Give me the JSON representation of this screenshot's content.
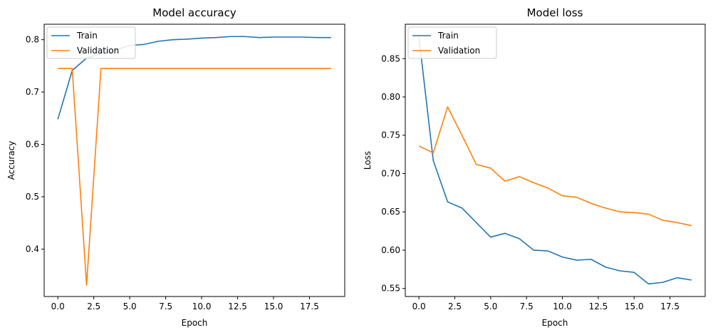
{
  "chart_data": [
    {
      "type": "line",
      "title": "Model accuracy",
      "xlabel": "Epoch",
      "ylabel": "Accuracy",
      "xlim": [
        -0.95,
        19.95
      ],
      "ylim": [
        0.3095,
        0.8295
      ],
      "xticks": [
        0.0,
        2.5,
        5.0,
        7.5,
        10.0,
        12.5,
        15.0,
        17.5
      ],
      "xtick_labels": [
        "0.0",
        "2.5",
        "5.0",
        "7.5",
        "10.0",
        "12.5",
        "15.0",
        "17.5"
      ],
      "yticks": [
        0.4,
        0.5,
        0.6,
        0.7,
        0.8
      ],
      "ytick_labels": [
        "0.4",
        "0.5",
        "0.6",
        "0.7",
        "0.8"
      ],
      "legend": "upper left",
      "grid": false,
      "x": [
        0,
        1,
        2,
        3,
        4,
        5,
        6,
        7,
        8,
        9,
        10,
        11,
        12,
        13,
        14,
        15,
        16,
        17,
        18,
        19
      ],
      "series": [
        {
          "name": "Train",
          "color": "#1f77b4",
          "values": [
            0.648,
            0.741,
            0.765,
            0.773,
            0.78,
            0.789,
            0.791,
            0.797,
            0.8,
            0.801,
            0.803,
            0.804,
            0.806,
            0.806,
            0.804,
            0.805,
            0.805,
            0.805,
            0.804,
            0.804
          ]
        },
        {
          "name": "Validation",
          "color": "#ff7f0e",
          "values": [
            0.745,
            0.745,
            0.331,
            0.745,
            0.745,
            0.745,
            0.745,
            0.745,
            0.745,
            0.745,
            0.745,
            0.745,
            0.745,
            0.745,
            0.745,
            0.745,
            0.745,
            0.745,
            0.745,
            0.745
          ]
        }
      ]
    },
    {
      "type": "line",
      "title": "Model loss",
      "xlabel": "Epoch",
      "ylabel": "Loss",
      "xlim": [
        -0.95,
        19.95
      ],
      "ylim": [
        0.5395,
        0.8949
      ],
      "xticks": [
        0.0,
        2.5,
        5.0,
        7.5,
        10.0,
        12.5,
        15.0,
        17.5
      ],
      "xtick_labels": [
        "0.0",
        "2.5",
        "5.0",
        "7.5",
        "10.0",
        "12.5",
        "15.0",
        "17.5"
      ],
      "yticks": [
        0.55,
        0.6,
        0.65,
        0.7,
        0.75,
        0.8,
        0.85
      ],
      "ytick_labels": [
        "0.55",
        "0.60",
        "0.65",
        "0.70",
        "0.75",
        "0.80",
        "0.85"
      ],
      "legend": "upper left",
      "grid": false,
      "x": [
        0,
        1,
        2,
        3,
        4,
        5,
        6,
        7,
        8,
        9,
        10,
        11,
        12,
        13,
        14,
        15,
        16,
        17,
        18,
        19
      ],
      "series": [
        {
          "name": "Train",
          "color": "#1f77b4",
          "values": [
            0.878,
            0.717,
            0.663,
            0.655,
            0.636,
            0.617,
            0.622,
            0.615,
            0.6,
            0.599,
            0.591,
            0.587,
            0.588,
            0.578,
            0.573,
            0.571,
            0.556,
            0.558,
            0.564,
            0.561
          ]
        },
        {
          "name": "Validation",
          "color": "#ff7f0e",
          "values": [
            0.736,
            0.727,
            0.787,
            0.75,
            0.712,
            0.707,
            0.69,
            0.696,
            0.688,
            0.681,
            0.671,
            0.669,
            0.661,
            0.655,
            0.65,
            0.649,
            0.647,
            0.639,
            0.636,
            0.632
          ]
        }
      ]
    }
  ]
}
